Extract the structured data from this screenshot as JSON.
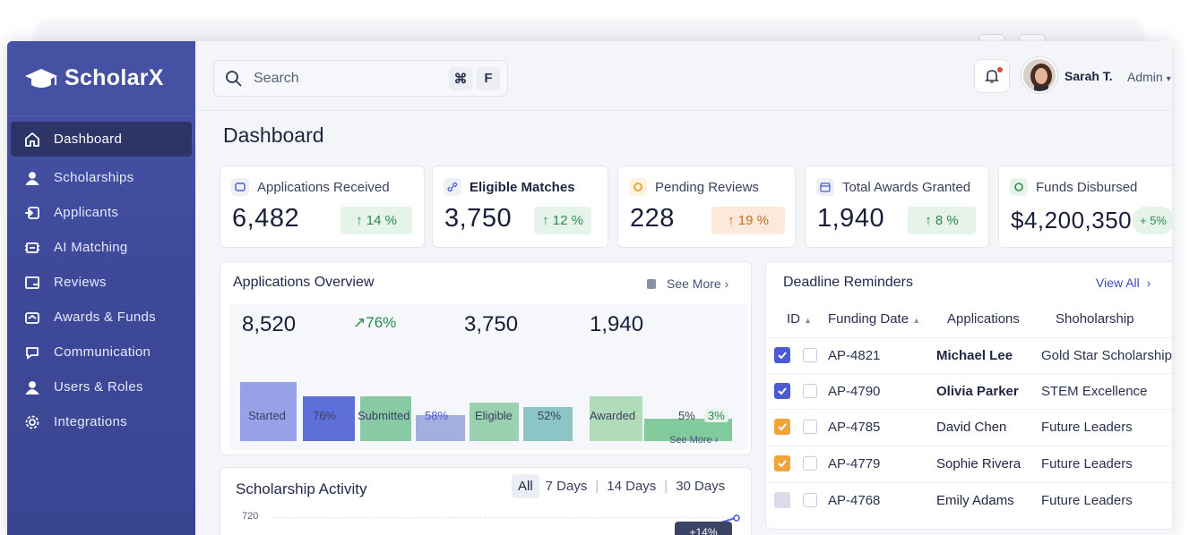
{
  "app": {
    "brand": "ScholarX"
  },
  "sidebar": {
    "items": [
      {
        "label": "Dashboard",
        "icon": "home-icon",
        "active": true
      },
      {
        "label": "Scholarships",
        "icon": "user-group-icon"
      },
      {
        "label": "Applicants",
        "icon": "applicants-icon"
      },
      {
        "label": "AI Matching",
        "icon": "ai-icon"
      },
      {
        "label": "Reviews",
        "icon": "review-icon"
      },
      {
        "label": "Awards & Funds",
        "icon": "wallet-icon"
      },
      {
        "label": "Communication",
        "icon": "chat-icon"
      },
      {
        "label": "Users & Roles",
        "icon": "users-icon"
      },
      {
        "label": "Integrations",
        "icon": "gear-icon"
      }
    ]
  },
  "topbar": {
    "search_placeholder": "Search",
    "shortcut_cmd": "⌘",
    "shortcut_key": "F",
    "user_name": "Sarah T.",
    "user_role": "Admin"
  },
  "page": {
    "title": "Dashboard"
  },
  "stats": [
    {
      "label": "Applications Received",
      "value": "6,482",
      "change": "↑ 14 %",
      "tone": "up"
    },
    {
      "label": "Eligible Matches",
      "value": "3,750",
      "change": "↑ 12 %",
      "tone": "up"
    },
    {
      "label": "Pending Reviews",
      "value": "228",
      "change": "↑ 19 %",
      "tone": "warn"
    },
    {
      "label": "Total Awards Granted",
      "value": "1,940",
      "change": "↑ 8 %",
      "tone": "up"
    },
    {
      "label": "Funds Disbursed",
      "value": "$4,200,350",
      "change": "+ 5%",
      "tone": "up"
    }
  ],
  "overview": {
    "title": "Applications Overview",
    "see_more": "See More",
    "see_more_bottom": "See More",
    "figures": {
      "a": "8,520",
      "trend": "76%",
      "b": "3,750",
      "c": "1,940"
    },
    "labels": [
      "Started",
      "76%",
      "Submitted",
      "58%",
      "Eligible",
      "52%",
      "Awarded",
      "5%",
      "3%"
    ]
  },
  "chart_data": {
    "type": "bar",
    "categories": [
      "Started",
      "Submitted",
      "Eligible",
      "Awarded"
    ],
    "values": [
      8520,
      null,
      3750,
      1940
    ],
    "conversion_labels": [
      "76%",
      "58%",
      "52%",
      "5%",
      "3%"
    ],
    "colors": [
      "#8c97e6",
      "#4f5fd6",
      "#7cc49a",
      "#9aa7dc",
      "#8fcca8",
      "#7fbfc0",
      "#a9d8b3",
      "#74c490"
    ]
  },
  "deadlines": {
    "title": "Deadline Reminders",
    "view_all": "View All",
    "columns": [
      "ID",
      "Funding Date",
      "Applications",
      "Shoholarship"
    ],
    "rows": [
      {
        "id": "AP-4821",
        "name": "Michael Lee",
        "scholarship": "Gold Star Scholarship",
        "state": "blue"
      },
      {
        "id": "AP-4790",
        "name": "Olivia Parker",
        "scholarship": "STEM Excellence",
        "state": "blue"
      },
      {
        "id": "AP-4785",
        "name": "David Chen",
        "scholarship": "Future Leaders",
        "state": "orange"
      },
      {
        "id": "AP-4779",
        "name": "Sophie Rivera",
        "scholarship": "Future Leaders",
        "state": "orange"
      },
      {
        "id": "AP-4768",
        "name": "Emily Adams",
        "scholarship": "Future Leaders",
        "state": "off"
      }
    ]
  },
  "activity": {
    "title": "Scholarship Activity",
    "tabs": [
      "All",
      "7 Days",
      "14 Days",
      "30 Days"
    ],
    "y_tick": "720",
    "badge": "+14%"
  }
}
